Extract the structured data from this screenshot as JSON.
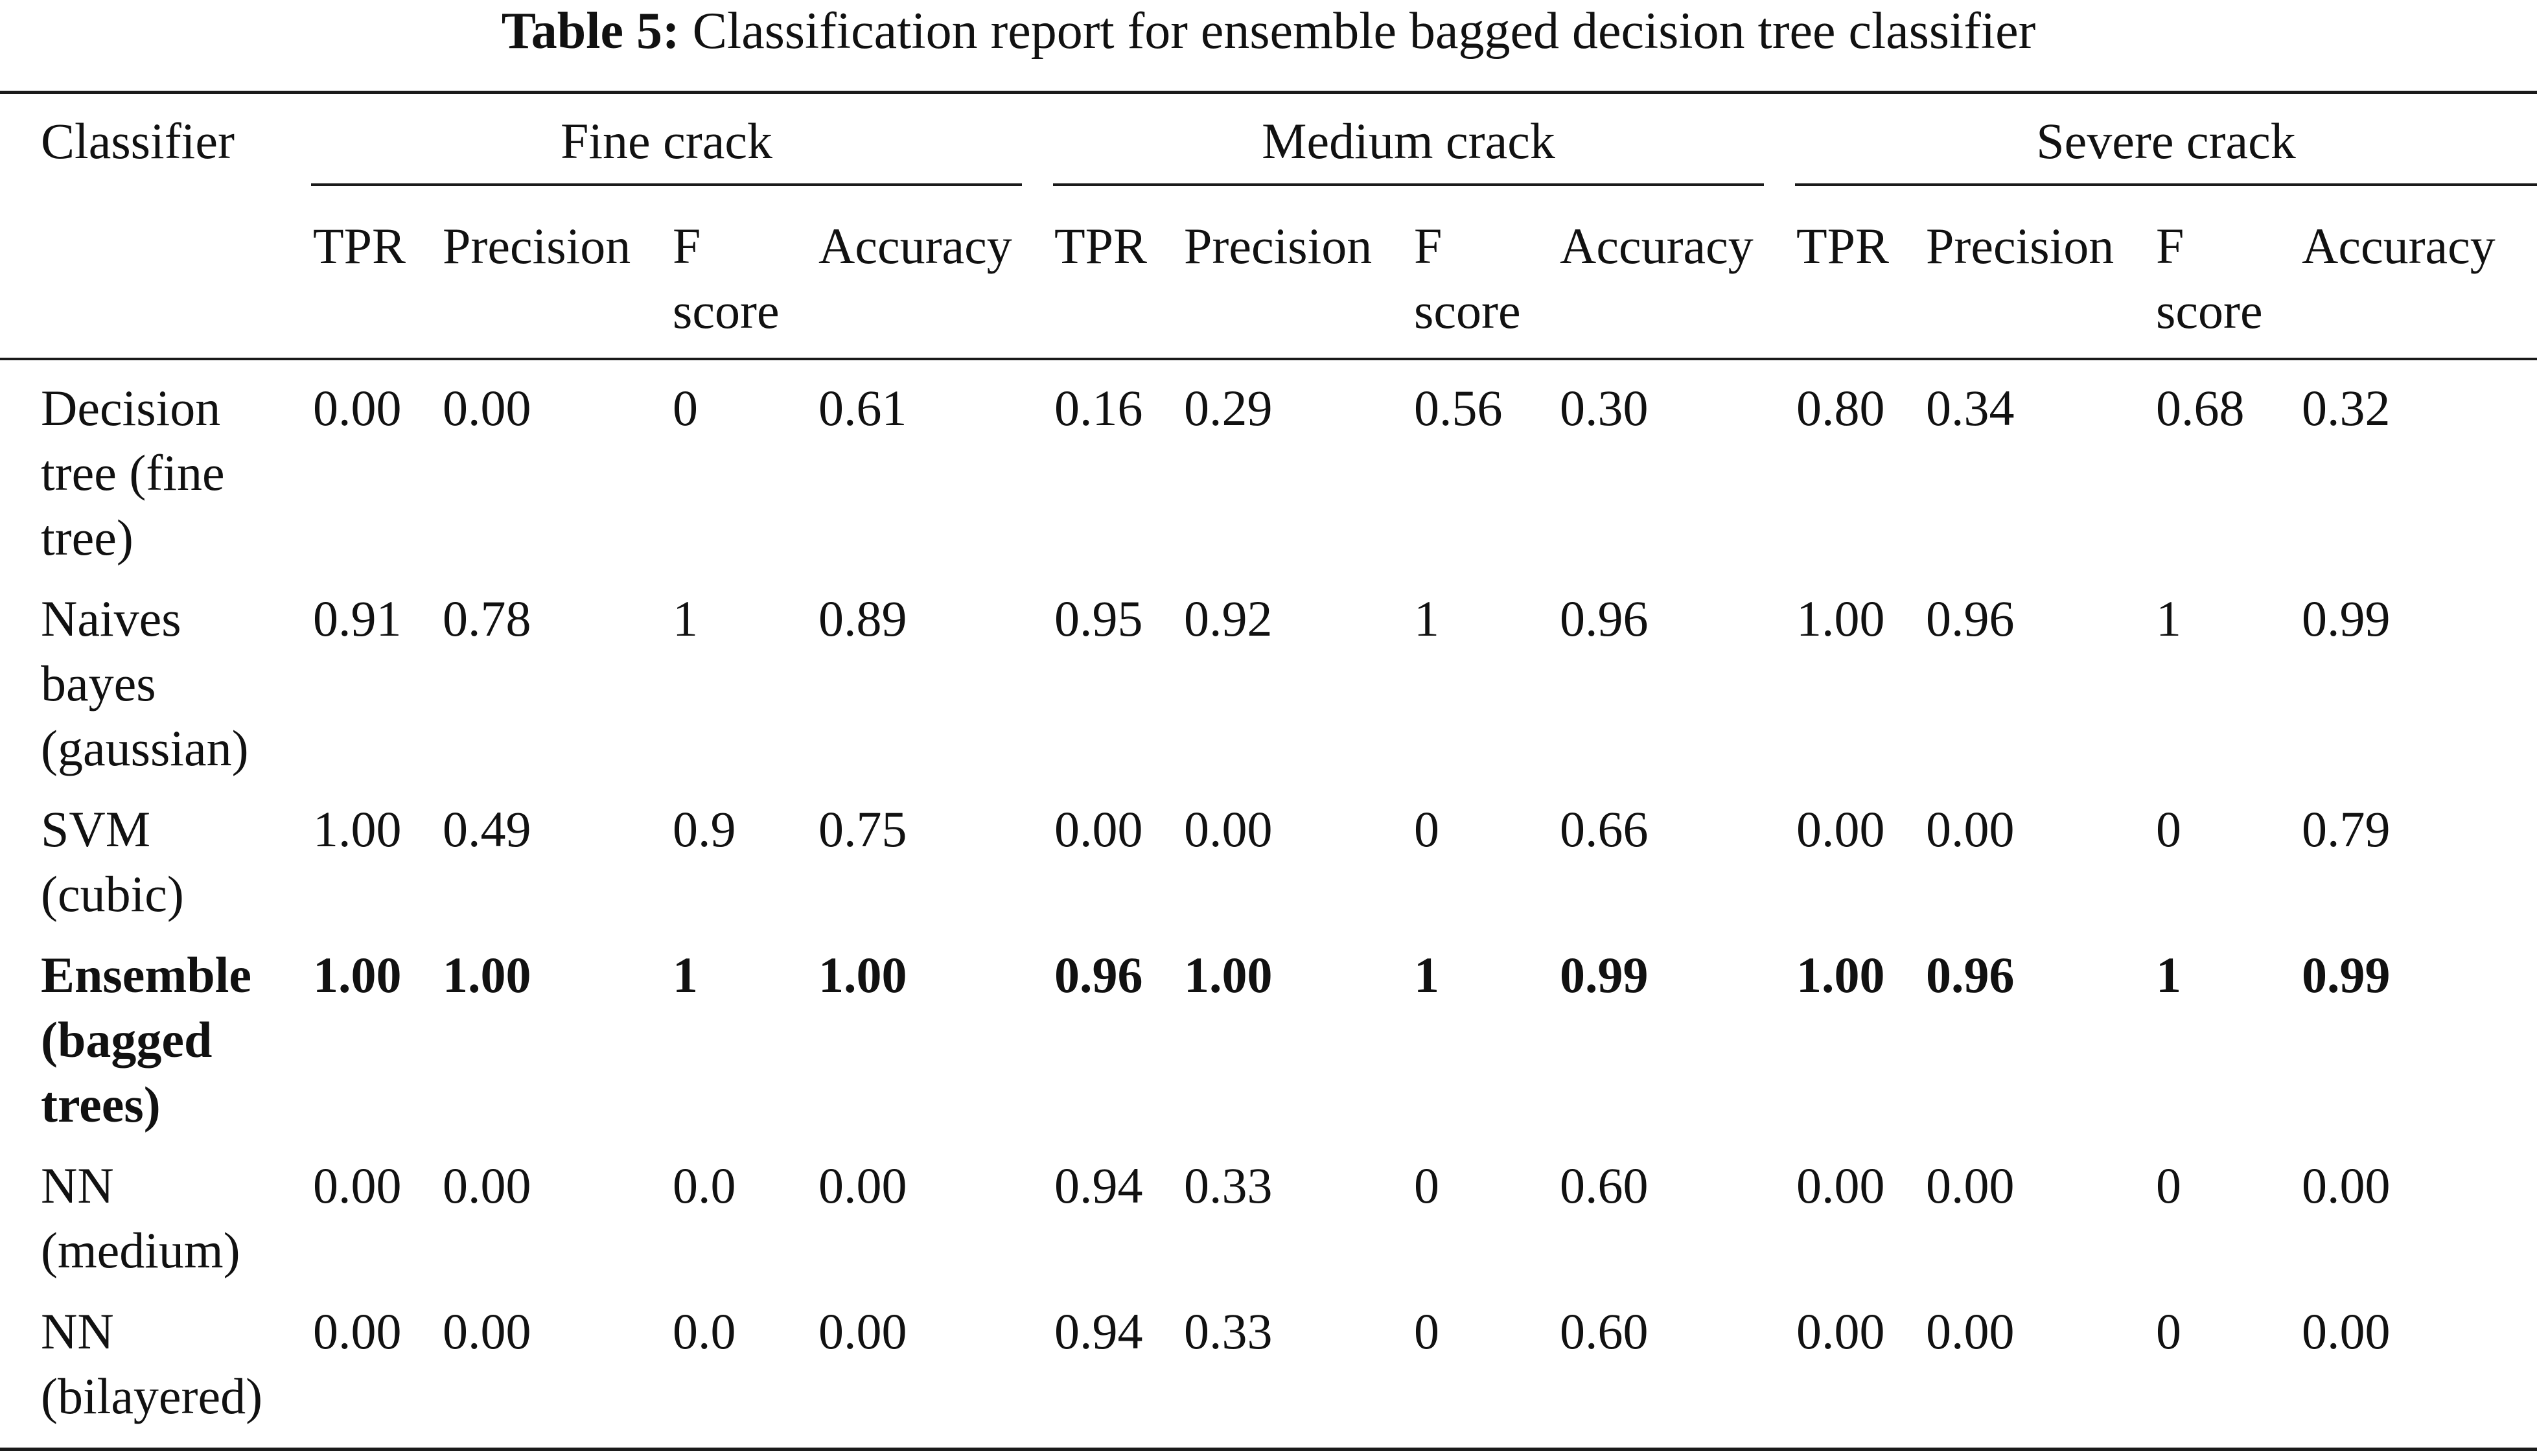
{
  "caption": {
    "label": "Table 5:",
    "text": "Classification report for ensemble bagged decision tree classifier"
  },
  "header": {
    "row_label": "Classifier",
    "groups": [
      "Fine crack",
      "Medium crack",
      "Severe crack"
    ],
    "columns": [
      "TPR",
      "Precision",
      "F score",
      "Accuracy"
    ],
    "fscore_lines": [
      "F",
      "score"
    ]
  },
  "rows": [
    {
      "name_lines": [
        "Decision",
        "tree (fine",
        "tree)"
      ],
      "bold": false,
      "values": [
        "0.00",
        "0.00",
        "0",
        "0.61",
        "0.16",
        "0.29",
        "0.56",
        "0.30",
        "0.80",
        "0.34",
        "0.68",
        "0.32"
      ]
    },
    {
      "name_lines": [
        "Naives",
        "bayes",
        "(gaussian)"
      ],
      "bold": false,
      "values": [
        "0.91",
        "0.78",
        "1",
        "0.89",
        "0.95",
        "0.92",
        "1",
        "0.96",
        "1.00",
        "0.96",
        "1",
        "0.99"
      ]
    },
    {
      "name_lines": [
        "SVM",
        "(cubic)"
      ],
      "bold": false,
      "values": [
        "1.00",
        "0.49",
        "0.9",
        "0.75",
        "0.00",
        "0.00",
        "0",
        "0.66",
        "0.00",
        "0.00",
        "0",
        "0.79"
      ]
    },
    {
      "name_lines": [
        "Ensemble",
        "(bagged",
        "trees)"
      ],
      "bold": true,
      "values": [
        "1.00",
        "1.00",
        "1",
        "1.00",
        "0.96",
        "1.00",
        "1",
        "0.99",
        "1.00",
        "0.96",
        "1",
        "0.99"
      ]
    },
    {
      "name_lines": [
        "NN",
        "(medium)"
      ],
      "bold": false,
      "values": [
        "0.00",
        "0.00",
        "0.0",
        "0.00",
        "0.94",
        "0.33",
        "0",
        "0.60",
        "0.00",
        "0.00",
        "0",
        "0.00"
      ]
    },
    {
      "name_lines": [
        "NN",
        "(bilayered)"
      ],
      "bold": false,
      "values": [
        "0.00",
        "0.00",
        "0.0",
        "0.00",
        "0.94",
        "0.33",
        "0",
        "0.60",
        "0.00",
        "0.00",
        "0",
        "0.00"
      ]
    }
  ]
}
